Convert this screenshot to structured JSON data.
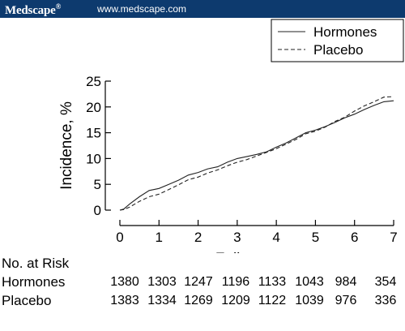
{
  "header": {
    "brand": "Medscape",
    "brand_mark": "®",
    "url": "www.medscape.com",
    "bg_color": "#0d3a6e"
  },
  "chart_data": {
    "type": "line",
    "xlabel": "Follow-up, y",
    "ylabel": "Incidence, %",
    "xlim": [
      0,
      7
    ],
    "ylim": [
      0,
      25
    ],
    "x_ticks": [
      0,
      1,
      2,
      3,
      4,
      5,
      6,
      7
    ],
    "y_ticks": [
      0,
      5,
      10,
      15,
      20,
      25
    ],
    "grid": false,
    "legend_position": "top-right",
    "series": [
      {
        "name": "Hormones",
        "style": "solid",
        "x": [
          0,
          0.1,
          0.25,
          0.5,
          0.75,
          1.0,
          1.25,
          1.5,
          1.75,
          2.0,
          2.25,
          2.5,
          2.75,
          3.0,
          3.25,
          3.5,
          3.75,
          4.0,
          4.25,
          4.5,
          4.75,
          5.0,
          5.25,
          5.5,
          5.75,
          6.0,
          6.25,
          6.5,
          6.75,
          7.0
        ],
        "y": [
          0,
          0.2,
          1.2,
          2.6,
          3.8,
          4.2,
          5.0,
          5.8,
          6.8,
          7.3,
          8.0,
          8.4,
          9.3,
          10.0,
          10.4,
          10.8,
          11.3,
          12.2,
          13.0,
          14.0,
          15.0,
          15.5,
          16.2,
          17.0,
          17.9,
          18.6,
          19.5,
          20.3,
          21.0,
          21.2
        ]
      },
      {
        "name": "Placebo",
        "style": "dashed",
        "x": [
          0,
          0.1,
          0.25,
          0.5,
          0.75,
          1.0,
          1.25,
          1.5,
          1.75,
          2.0,
          2.25,
          2.5,
          2.75,
          3.0,
          3.25,
          3.5,
          3.75,
          4.0,
          4.25,
          4.5,
          4.75,
          5.0,
          5.25,
          5.5,
          5.75,
          6.0,
          6.25,
          6.5,
          6.75,
          7.0
        ],
        "y": [
          0,
          0.1,
          0.6,
          1.7,
          2.6,
          3.1,
          4.0,
          4.9,
          5.9,
          6.4,
          7.2,
          7.8,
          8.6,
          9.3,
          9.8,
          10.5,
          11.2,
          11.9,
          12.8,
          13.7,
          14.8,
          15.3,
          16.1,
          17.2,
          18.0,
          19.2,
          20.2,
          21.0,
          21.9,
          22.0
        ]
      }
    ]
  },
  "risk_table": {
    "title": "No. at Risk",
    "rows": [
      {
        "label": "Hormones",
        "values": [
          "1380",
          "1303",
          "1247",
          "1196",
          "1133",
          "1043",
          "984",
          "354"
        ]
      },
      {
        "label": "Placebo",
        "values": [
          "1383",
          "1334",
          "1269",
          "1209",
          "1122",
          "1039",
          "976",
          "336"
        ]
      }
    ]
  }
}
